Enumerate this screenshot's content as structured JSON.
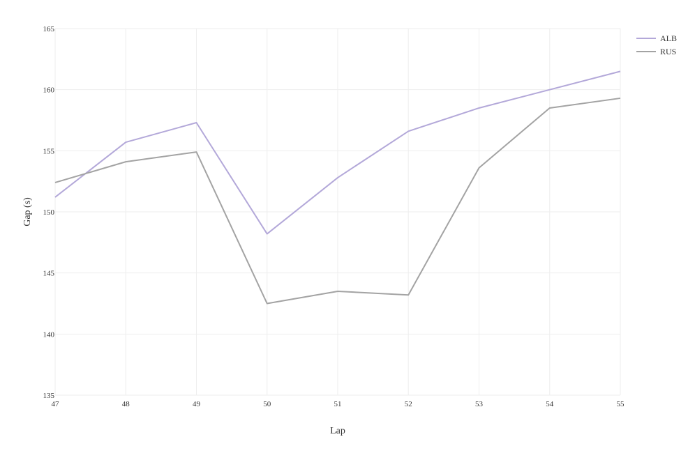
{
  "chart_data": {
    "type": "line",
    "title": "",
    "xlabel": "Lap",
    "ylabel": "Gap (s)",
    "x": [
      47,
      48,
      49,
      50,
      51,
      52,
      53,
      54,
      55
    ],
    "xlim": [
      47,
      55
    ],
    "ylim": [
      135,
      165
    ],
    "yticks": [
      135,
      140,
      145,
      150,
      155,
      160,
      165
    ],
    "xticks": [
      47,
      48,
      49,
      50,
      51,
      52,
      53,
      54,
      55
    ],
    "grid": true,
    "legend_position": "top-right",
    "series": [
      {
        "name": "ALB",
        "color": "#b3a8d9",
        "values": [
          151.2,
          155.7,
          157.3,
          148.2,
          152.8,
          156.6,
          158.5,
          160.0,
          161.5
        ]
      },
      {
        "name": "RUS",
        "color": "#a3a3a3",
        "values": [
          152.4,
          154.1,
          154.9,
          142.5,
          143.5,
          143.2,
          153.6,
          158.5,
          159.3
        ]
      }
    ]
  }
}
